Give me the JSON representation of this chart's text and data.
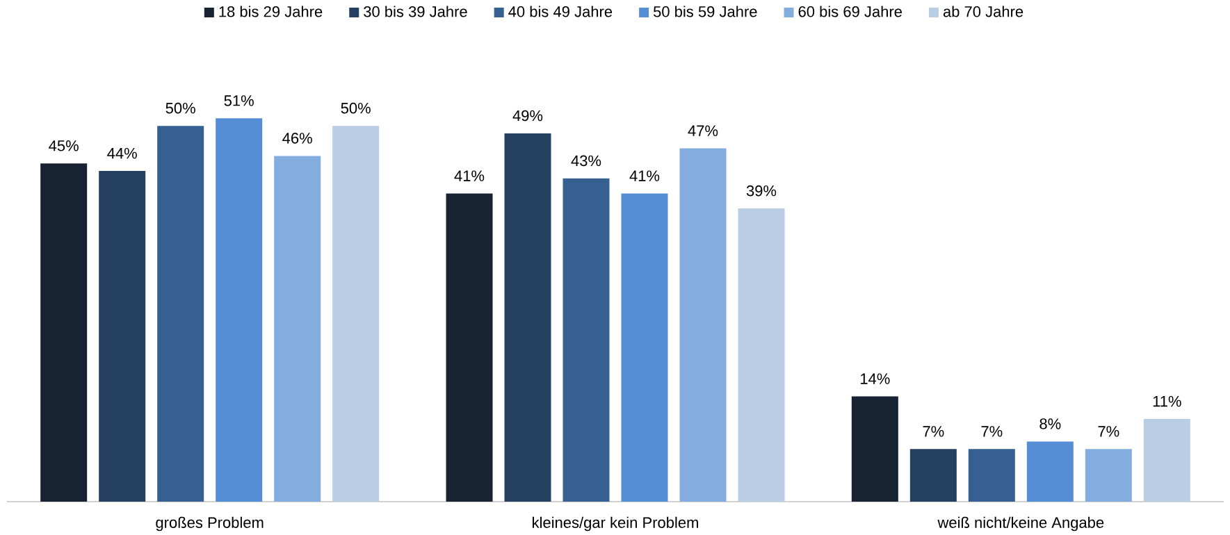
{
  "chart_data": {
    "type": "bar",
    "legend": "top",
    "categories": [
      "großes Problem",
      "kleines/gar kein Problem",
      "weiß nicht/keine Angabe"
    ],
    "series": [
      {
        "name": "18 bis 29 Jahre",
        "color": "#172232",
        "values": [
          45,
          41,
          14
        ],
        "value_labels": [
          "45%",
          "41%",
          "14%"
        ]
      },
      {
        "name": "30 bis 39 Jahre",
        "color": "#243f60",
        "values": [
          44,
          49,
          7
        ],
        "value_labels": [
          "44%",
          "49%",
          "7%"
        ]
      },
      {
        "name": "40 bis 49 Jahre",
        "color": "#376092",
        "values": [
          50,
          43,
          7
        ],
        "value_labels": [
          "50%",
          "43%",
          "7%"
        ]
      },
      {
        "name": "50 bis 59 Jahre",
        "color": "#558ed5",
        "values": [
          51,
          41,
          8
        ],
        "value_labels": [
          "51%",
          "41%",
          "8%"
        ]
      },
      {
        "name": "60 bis 69 Jahre",
        "color": "#83acdf",
        "values": [
          46,
          47,
          7
        ],
        "value_labels": [
          "46%",
          "47%",
          "7%"
        ]
      },
      {
        "name": "ab 70 Jahre",
        "color": "#b9cde5",
        "values": [
          50,
          39,
          11
        ],
        "value_labels": [
          "50%",
          "39%",
          "11%"
        ]
      }
    ]
  }
}
